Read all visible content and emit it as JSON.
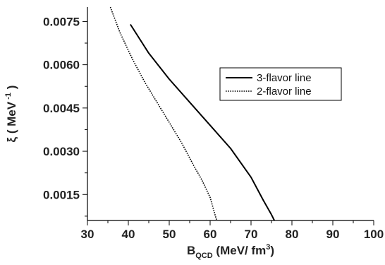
{
  "chart_data": {
    "type": "line",
    "xlim": [
      30,
      100
    ],
    "ylim": [
      0.0006,
      0.008
    ],
    "x_ticks": [
      30,
      40,
      50,
      60,
      70,
      80,
      90,
      100
    ],
    "y_ticks": [
      0.0015,
      0.003,
      0.0045,
      0.006,
      0.0075
    ],
    "x_tick_labels": [
      "30",
      "40",
      "50",
      "60",
      "70",
      "80",
      "90",
      "100"
    ],
    "y_tick_labels": [
      "0.0015",
      "0.0030",
      "0.0045",
      "0.0060",
      "0.0075"
    ],
    "xlabel": {
      "main": "B",
      "sub": "QCD",
      "rest": " (MeV/ fm",
      "sup": "3",
      "end": ")"
    },
    "ylabel": {
      "main": "ξ  ( MeV",
      "sup": " -1",
      "end": " )"
    },
    "grid": false,
    "legend_position": "upper-right",
    "series": [
      {
        "name": "3-flavor line",
        "style": "solid",
        "color": "#000000",
        "x": [
          40.5,
          45,
          50,
          55,
          60,
          65,
          70,
          73,
          75,
          75.7
        ],
        "y": [
          0.0074,
          0.0064,
          0.0055,
          0.0047,
          0.0039,
          0.0031,
          0.0021,
          0.0013,
          0.0008,
          0.0006
        ]
      },
      {
        "name": "2-flavor line",
        "style": "dotted",
        "color": "#000000",
        "x": [
          35.6,
          38,
          41,
          44,
          47,
          50,
          53,
          56,
          58,
          60,
          61,
          61.6
        ],
        "y": [
          0.008,
          0.0071,
          0.0062,
          0.0054,
          0.0047,
          0.004,
          0.0033,
          0.0025,
          0.002,
          0.0014,
          0.0009,
          0.0006
        ]
      }
    ]
  }
}
